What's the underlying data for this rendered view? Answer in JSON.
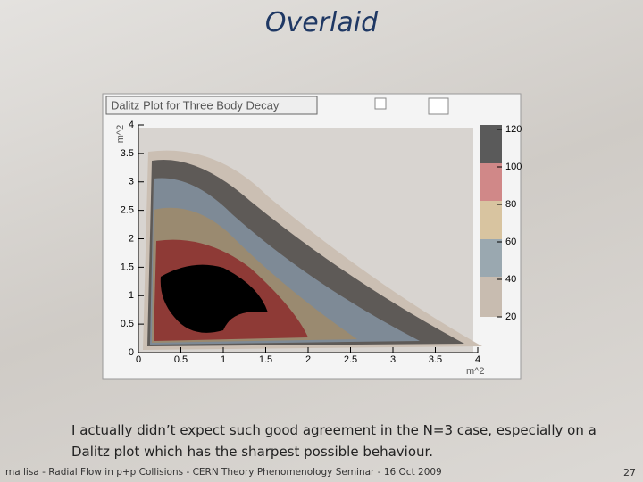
{
  "slide": {
    "title": "Overlaid",
    "plot": {
      "title": "Dalitz Plot for Three Body Decay",
      "y_axis_label": "m^2",
      "x_axis_label": "m^2",
      "x_ticks": [
        0,
        0.5,
        1,
        1.5,
        2,
        2.5,
        3,
        3.5,
        4
      ],
      "y_ticks": [
        0,
        0.5,
        1,
        1.5,
        2,
        2.5,
        3,
        3.5,
        4
      ],
      "palette_ticks": [
        20,
        40,
        60,
        80,
        100,
        120
      ]
    },
    "caption": [
      "I actually didn’t expect such good agreement in the N=3 case, especially on a",
      "Dalitz plot which has the sharpest possible behaviour."
    ],
    "footer": {
      "left": "ma lisa - Radial Flow in p+p Collisions - CERN Theory Phenomenology Seminar - 16 Oct 2009",
      "page": "27"
    }
  }
}
